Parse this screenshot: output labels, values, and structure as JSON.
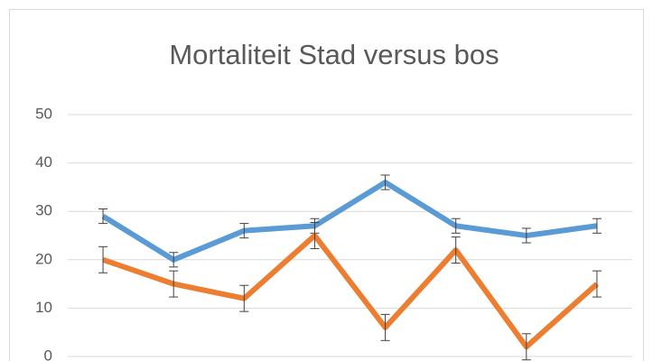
{
  "chart_data": {
    "type": "line",
    "title": "Mortaliteit Stad versus bos",
    "categories": [
      null,
      null,
      null,
      null,
      null,
      null,
      null,
      null
    ],
    "series": [
      {
        "color": "#5b9bd5",
        "values": [
          29,
          20,
          26,
          27,
          36,
          27,
          25,
          27
        ],
        "errors": [
          1.5,
          1.5,
          1.5,
          1.5,
          1.5,
          1.5,
          1.5,
          1.5
        ]
      },
      {
        "color": "#ed7d31",
        "values": [
          20,
          15,
          12,
          25,
          6,
          22,
          2,
          15
        ],
        "errors": [
          2.7,
          2.7,
          2.7,
          2.7,
          2.7,
          2.7,
          2.7,
          2.7
        ]
      }
    ],
    "ylim": [
      0,
      50
    ],
    "yticks": [
      0,
      10,
      20,
      30,
      40,
      50
    ],
    "grid": true
  }
}
